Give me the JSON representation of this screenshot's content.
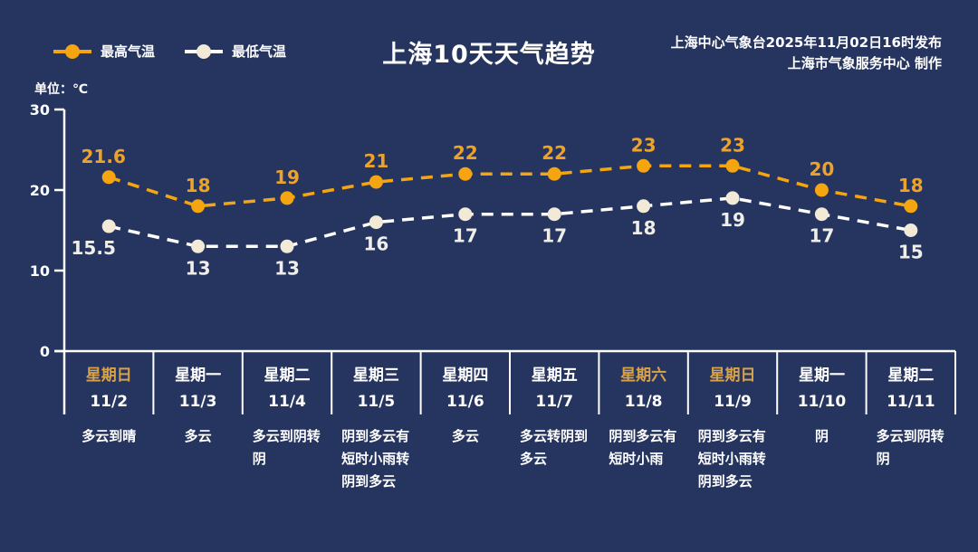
{
  "title": "上海10天天气趋势",
  "publisher": {
    "line1": "上海中心气象台2025年11月02日16时发布",
    "line2": "上海市气象服务中心  制作"
  },
  "unit_label": "单位：℃",
  "legend": [
    {
      "label": "最高气温",
      "line_color": "#f5a50f",
      "marker_color": "#f5a50f"
    },
    {
      "label": "最低气温",
      "line_color": "#ffffff",
      "marker_color": "#f2ead6"
    }
  ],
  "chart_data": {
    "type": "line",
    "title": "上海10天天气趋势",
    "x": [
      "11/2",
      "11/3",
      "11/4",
      "11/5",
      "11/6",
      "11/7",
      "11/8",
      "11/9",
      "11/10",
      "11/11"
    ],
    "series": [
      {
        "name": "最高气温",
        "values": [
          21.6,
          18,
          19,
          21,
          22,
          22,
          23,
          23,
          20,
          18
        ],
        "line_color": "#f5a50f",
        "marker_color": "#f5a50f",
        "label_color": "#eda32a",
        "label_side": "above"
      },
      {
        "name": "最低气温",
        "values": [
          15.5,
          13,
          13,
          16,
          17,
          17,
          18,
          19,
          17,
          15
        ],
        "line_color": "#ffffff",
        "marker_color": "#f2ead6",
        "label_color": "#efeee9",
        "label_side": "below"
      }
    ],
    "ylabel": "单位：℃",
    "ylim": [
      0,
      30
    ],
    "yticks": [
      0,
      10,
      20,
      30
    ],
    "grid": false,
    "line_style": "dashed",
    "legend_position": "top-left"
  },
  "days": [
    {
      "weekday": "星期日",
      "date": "11/2",
      "weather": "多云到晴",
      "weekend": true
    },
    {
      "weekday": "星期一",
      "date": "11/3",
      "weather": "多云",
      "weekend": false
    },
    {
      "weekday": "星期二",
      "date": "11/4",
      "weather": "多云到阴转阴",
      "weekend": false
    },
    {
      "weekday": "星期三",
      "date": "11/5",
      "weather": "阴到多云有短时小雨转阴到多云",
      "weekend": false
    },
    {
      "weekday": "星期四",
      "date": "11/6",
      "weather": "多云",
      "weekend": false
    },
    {
      "weekday": "星期五",
      "date": "11/7",
      "weather": "多云转阴到多云",
      "weekend": false
    },
    {
      "weekday": "星期六",
      "date": "11/8",
      "weather": "阴到多云有短时小雨",
      "weekend": true
    },
    {
      "weekday": "星期日",
      "date": "11/9",
      "weather": "阴到多云有短时小雨转阴到多云",
      "weekend": true
    },
    {
      "weekday": "星期一",
      "date": "11/10",
      "weather": "阴",
      "weekend": false
    },
    {
      "weekday": "星期二",
      "date": "11/11",
      "weather": "多云到阴转阴",
      "weekend": false
    }
  ],
  "colors": {
    "background": "#263560",
    "axis": "#ffffff",
    "text": "#ffffff",
    "max_accent": "#f5a50f",
    "max_label": "#eda32a",
    "min_line": "#ffffff",
    "min_marker": "#f2ead6",
    "min_label": "#efeee9",
    "weekend_day": "#d7a24b"
  }
}
